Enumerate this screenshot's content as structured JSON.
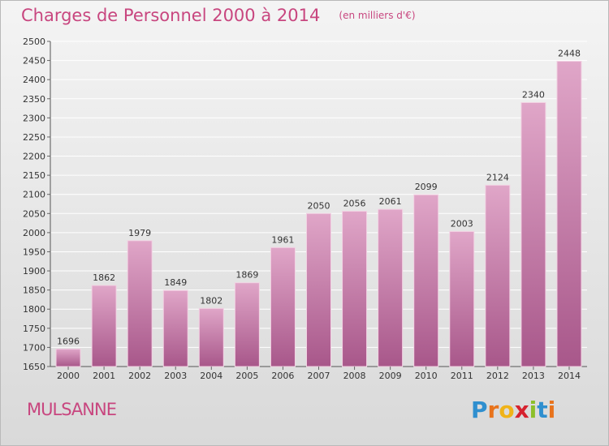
{
  "title": "Charges de Personnel 2000 à 2014",
  "subtitle": "(en milliers d'€)",
  "commune": "MULSANNE",
  "logo": {
    "text": "Proxiti",
    "letters": [
      "P",
      "r",
      "o",
      "x",
      "i",
      "t",
      "i"
    ],
    "colors": [
      "#2f8fcf",
      "#e8731c",
      "#f0b318",
      "#d6222f",
      "#8cbf2a",
      "#2f8fcf",
      "#e8731c"
    ]
  },
  "colors": {
    "bar_top": "#e0a6c8",
    "bar_bottom": "#a8578a",
    "accent": "#c8467f",
    "grid": "#ffffff"
  },
  "chart_data": {
    "type": "bar",
    "categories": [
      "2000",
      "2001",
      "2002",
      "2003",
      "2004",
      "2005",
      "2006",
      "2007",
      "2008",
      "2009",
      "2010",
      "2011",
      "2012",
      "2013",
      "2014"
    ],
    "values": [
      1696,
      1862,
      1979,
      1849,
      1802,
      1869,
      1961,
      2050,
      2056,
      2061,
      2099,
      2003,
      2124,
      2340,
      2448
    ],
    "ylim": [
      1650,
      2500
    ],
    "yticks": [
      1650,
      1700,
      1750,
      1800,
      1850,
      1900,
      1950,
      2000,
      2050,
      2100,
      2150,
      2200,
      2250,
      2300,
      2350,
      2400,
      2450,
      2500
    ],
    "grid": true,
    "data_labels": true
  }
}
